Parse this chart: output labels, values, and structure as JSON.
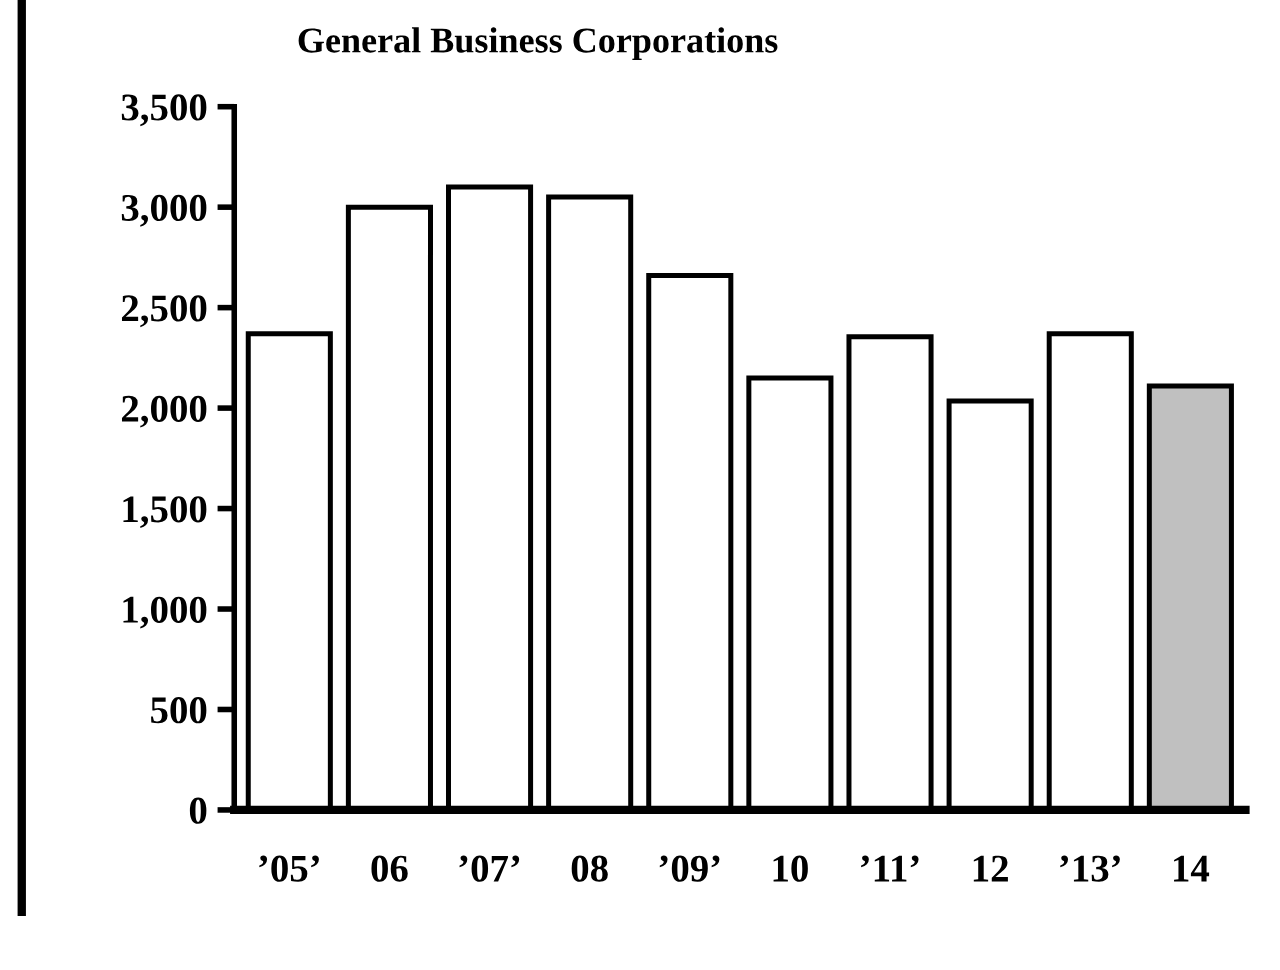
{
  "chart_data": {
    "type": "bar",
    "title": "General Business Corporations",
    "categories": [
      "’05’",
      "06",
      "’07’",
      "08",
      "’09’",
      "10",
      "’11’",
      "12",
      "’13’",
      "14"
    ],
    "values": [
      2370,
      3000,
      3100,
      3050,
      2660,
      2150,
      2355,
      2035,
      2370,
      2110
    ],
    "colors": [
      "#ffffff",
      "#ffffff",
      "#ffffff",
      "#ffffff",
      "#ffffff",
      "#ffffff",
      "#ffffff",
      "#ffffff",
      "#ffffff",
      "#c0c0c0"
    ],
    "ylim": [
      0,
      3500
    ],
    "yticks": [
      {
        "value": 0,
        "label": "0"
      },
      {
        "value": 500,
        "label": "500"
      },
      {
        "value": 1000,
        "label": "1,000"
      },
      {
        "value": 1500,
        "label": "1,500"
      },
      {
        "value": 2000,
        "label": "2,000"
      },
      {
        "value": 2500,
        "label": "2,500"
      },
      {
        "value": 3000,
        "label": "3,000"
      },
      {
        "value": 3500,
        "label": "3,500"
      }
    ],
    "grid": false,
    "legend": false
  }
}
